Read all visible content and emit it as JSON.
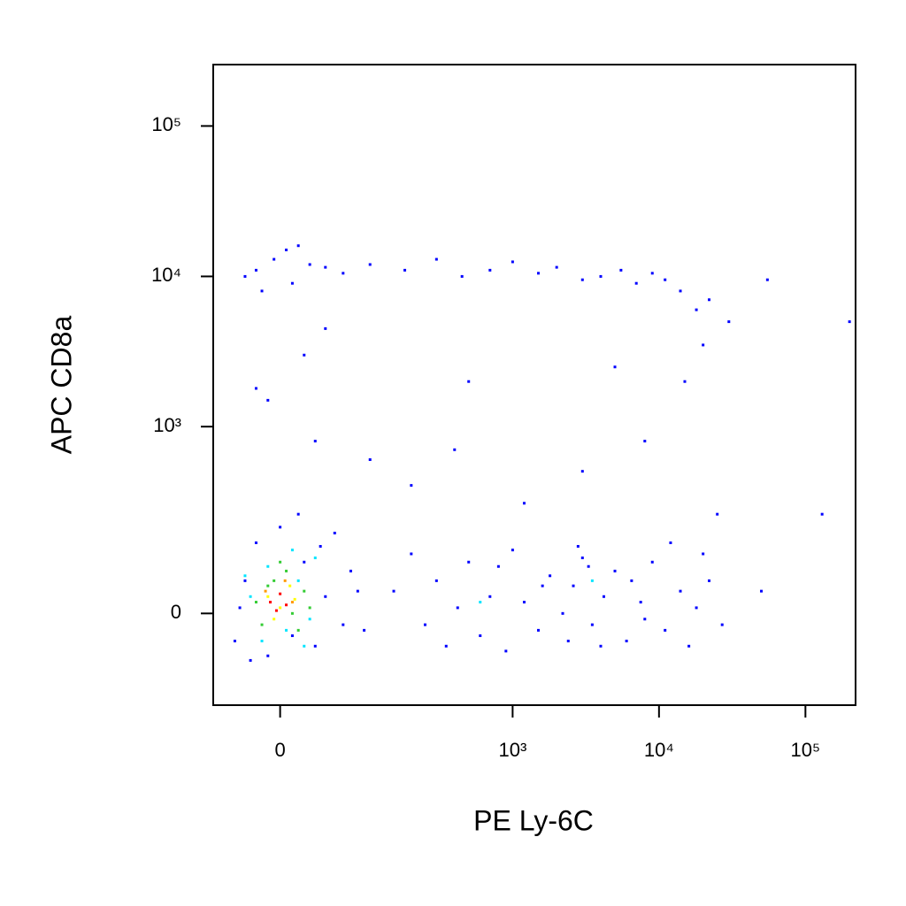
{
  "chart_data": {
    "type": "scatter",
    "x_label": "PE Ly-6C",
    "y_label": "APC CD8a",
    "xscale": "biexponential",
    "yscale": "biexponential",
    "xlim": [
      -65,
      220000
    ],
    "ylim": [
      -220,
      256000
    ],
    "xticks": [
      0,
      {
        "value": 1000,
        "label": "10³"
      },
      {
        "value": 10000,
        "label": "10⁴"
      },
      {
        "value": 100000,
        "label": "10⁵"
      }
    ],
    "yticks": [
      0,
      {
        "value": 1000,
        "label": "10³"
      },
      {
        "value": 10000,
        "label": "10⁴"
      },
      {
        "value": 100000,
        "label": "10⁵"
      }
    ],
    "series": [
      {
        "color": "#0000ff",
        "x": [
          150,
          250,
          300,
          420,
          600,
          800,
          1200,
          1500,
          1800,
          2200,
          2600,
          3000,
          3500,
          4200,
          5000,
          6000,
          7500,
          9000,
          11000,
          14000,
          18000,
          22000,
          27000,
          200,
          350,
          700,
          1000,
          2800,
          3300,
          4000,
          12000,
          500,
          900,
          1600,
          2400,
          6500,
          8000,
          16000,
          20000,
          50000,
          -20,
          -5,
          10,
          25,
          -30,
          5,
          40,
          60,
          100,
          180,
          300,
          450,
          700,
          1000,
          1500,
          2000,
          3000,
          4000,
          5500,
          7000,
          9000,
          11000,
          14000,
          18000,
          22000,
          30000,
          -15,
          15,
          55000,
          20,
          -10,
          30,
          100,
          200,
          500,
          1200,
          3000,
          5000,
          15000,
          20000,
          8000,
          40,
          -20,
          25000,
          130000,
          200000,
          400,
          -40,
          -30,
          -20,
          -10,
          0,
          10,
          20,
          30,
          40,
          50,
          60,
          70,
          -35,
          -25,
          15,
          80,
          90,
          35
        ],
        "y": [
          40,
          -20,
          60,
          10,
          -40,
          90,
          20,
          -30,
          70,
          0,
          50,
          110,
          -20,
          30,
          80,
          -50,
          20,
          100,
          -30,
          40,
          10,
          60,
          -20,
          120,
          -60,
          30,
          130,
          140,
          90,
          -60,
          150,
          100,
          -70,
          50,
          -50,
          60,
          -10,
          -60,
          120,
          40,
          11000,
          13000,
          9000,
          12000,
          10000,
          15000,
          11500,
          10500,
          12000,
          11000,
          13000,
          10000,
          11000,
          12500,
          10500,
          11500,
          9500,
          10000,
          11000,
          9000,
          10500,
          9500,
          8000,
          6000,
          7000,
          5000,
          8000,
          16000,
          9500,
          3000,
          1500,
          800,
          600,
          400,
          2000,
          300,
          500,
          2500,
          2000,
          3500,
          800,
          4500,
          1800,
          250,
          250,
          5000,
          700,
          -50,
          60,
          150,
          -80,
          200,
          -40,
          100,
          -60,
          30,
          180,
          -20,
          80,
          10,
          -90,
          250,
          40,
          -30,
          140
        ]
      },
      {
        "color": "#00e5ff",
        "x": [
          -25,
          -10,
          5,
          15,
          25,
          -15,
          30,
          10,
          -30,
          20,
          600,
          3500
        ],
        "y": [
          30,
          90,
          -30,
          60,
          -10,
          -50,
          110,
          130,
          70,
          -60,
          20,
          60
        ]
      },
      {
        "color": "#33cc33",
        "x": [
          -20,
          -5,
          10,
          20,
          -15,
          0,
          15,
          -10,
          5,
          25
        ],
        "y": [
          20,
          60,
          0,
          40,
          -20,
          100,
          -30,
          50,
          80,
          10
        ]
      },
      {
        "color": "#ffff00",
        "x": [
          -10,
          0,
          8,
          -5,
          12
        ],
        "y": [
          30,
          10,
          50,
          -10,
          25
        ]
      },
      {
        "color": "#ff9900",
        "x": [
          -12,
          4,
          10
        ],
        "y": [
          40,
          60,
          20
        ]
      },
      {
        "color": "#ff0000",
        "x": [
          -8,
          0,
          5,
          -3
        ],
        "y": [
          20,
          35,
          15,
          5
        ]
      }
    ]
  }
}
